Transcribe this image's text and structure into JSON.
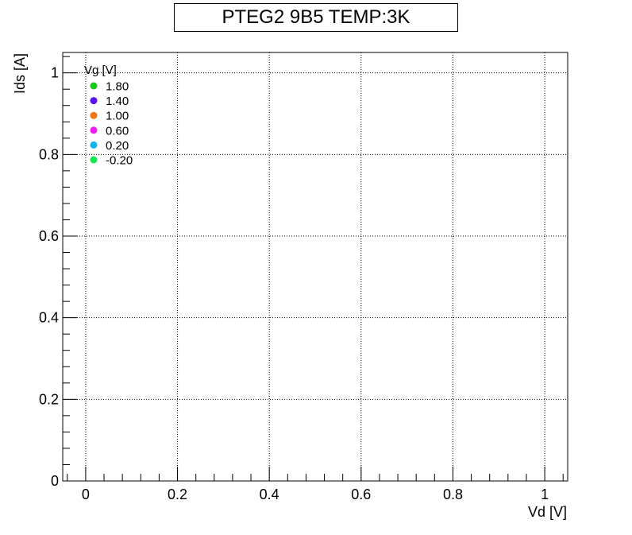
{
  "chart_data": {
    "type": "scatter",
    "title": "PTEG2 9B5 TEMP:3K",
    "xlabel": "Vd [V]",
    "ylabel": "Ids [A]",
    "xlim": [
      -0.05,
      1.05
    ],
    "ylim": [
      0,
      1.05
    ],
    "xticks": [
      0,
      0.2,
      0.4,
      0.6,
      0.8,
      1
    ],
    "xtick_labels": [
      "0",
      "0.2",
      "0.4",
      "0.6",
      "0.8",
      "1"
    ],
    "yticks": [
      0,
      0.2,
      0.4,
      0.6,
      0.8,
      1
    ],
    "ytick_labels": [
      "0",
      "0.2",
      "0.4",
      "0.6",
      "0.8",
      "1"
    ],
    "grid": true,
    "legend": {
      "title": "Vg [V]",
      "placement": "top-left",
      "entries": [
        {
          "label": "1.80",
          "color": "#19c819"
        },
        {
          "label": "1.40",
          "color": "#5a14f0"
        },
        {
          "label": "1.00",
          "color": "#f07814"
        },
        {
          "label": "0.60",
          "color": "#f01ef0"
        },
        {
          "label": "0.20",
          "color": "#14b4f0"
        },
        {
          "label": "-0.20",
          "color": "#14e650"
        }
      ]
    },
    "series": [
      {
        "name": "1.80",
        "color": "#19c819",
        "x": [],
        "y": []
      },
      {
        "name": "1.40",
        "color": "#5a14f0",
        "x": [],
        "y": []
      },
      {
        "name": "1.00",
        "color": "#f07814",
        "x": [],
        "y": []
      },
      {
        "name": "0.60",
        "color": "#f01ef0",
        "x": [],
        "y": []
      },
      {
        "name": "0.20",
        "color": "#14b4f0",
        "x": [],
        "y": []
      },
      {
        "name": "-0.20",
        "color": "#14e650",
        "x": [],
        "y": []
      }
    ]
  }
}
